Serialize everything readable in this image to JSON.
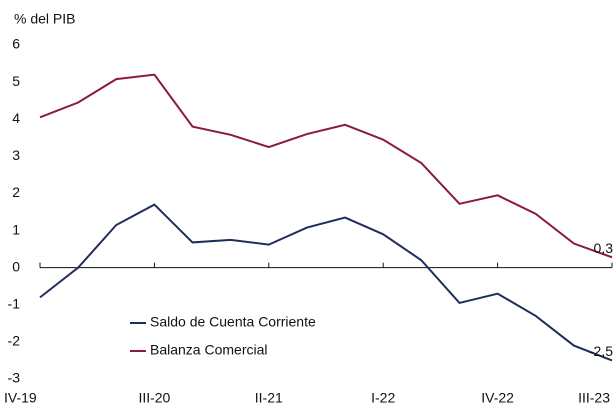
{
  "chart_data": {
    "type": "line",
    "y_label": "% del PIB",
    "categories": [
      "IV-19",
      null,
      null,
      "III-20",
      null,
      null,
      "II-21",
      null,
      null,
      "I-22",
      null,
      null,
      "IV-22",
      null,
      null,
      "III-23"
    ],
    "series": [
      {
        "name": "Saldo de Cuenta Corriente",
        "color": "#1f2d5a",
        "values": [
          -0.8,
          0,
          1.15,
          1.7,
          0.68,
          0.75,
          0.62,
          1.08,
          1.35,
          0.9,
          0.2,
          -0.95,
          -0.7,
          -1.3,
          -2.1,
          -2.5
        ],
        "value_labels": [
          null,
          null,
          null,
          null,
          null,
          null,
          null,
          null,
          null,
          null,
          null,
          null,
          null,
          null,
          null,
          "-2,5"
        ]
      },
      {
        "name": "Balanza Comercial",
        "color": "#8b1a3a",
        "values": [
          4.05,
          4.45,
          5.08,
          5.2,
          3.8,
          3.58,
          3.25,
          3.6,
          3.85,
          3.45,
          2.82,
          1.72,
          1.95,
          1.45,
          0.65,
          0.28
        ],
        "value_labels": [
          null,
          null,
          null,
          null,
          null,
          null,
          null,
          null,
          null,
          null,
          null,
          null,
          null,
          null,
          null,
          "0,3"
        ]
      }
    ],
    "ylim": [
      -3,
      6
    ],
    "yticks": [
      -3,
      -2,
      -1,
      0,
      1,
      2,
      3,
      4,
      5,
      6
    ],
    "legend": "lower left"
  }
}
